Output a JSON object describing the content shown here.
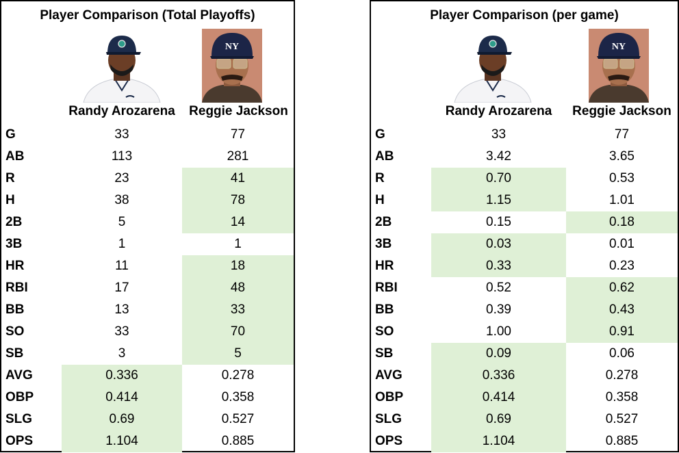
{
  "colors": {
    "highlight": "#dff0d6",
    "border": "#000000",
    "background": "#ffffff"
  },
  "players": [
    "Randy Arozarena",
    "Reggie Jackson"
  ],
  "photos": [
    "Randy Arozarena photo (Mariners cap)",
    "Reggie Jackson photo (Yankees helmet)"
  ],
  "panels": [
    {
      "title": "Player Comparison (Total Playoffs)",
      "rows": [
        {
          "stat": "G",
          "v": [
            "33",
            "77"
          ],
          "hl": [
            false,
            false
          ]
        },
        {
          "stat": "AB",
          "v": [
            "113",
            "281"
          ],
          "hl": [
            false,
            false
          ]
        },
        {
          "stat": "R",
          "v": [
            "23",
            "41"
          ],
          "hl": [
            false,
            true
          ]
        },
        {
          "stat": "H",
          "v": [
            "38",
            "78"
          ],
          "hl": [
            false,
            true
          ]
        },
        {
          "stat": "2B",
          "v": [
            "5",
            "14"
          ],
          "hl": [
            false,
            true
          ]
        },
        {
          "stat": "3B",
          "v": [
            "1",
            "1"
          ],
          "hl": [
            false,
            false
          ]
        },
        {
          "stat": "HR",
          "v": [
            "11",
            "18"
          ],
          "hl": [
            false,
            true
          ]
        },
        {
          "stat": "RBI",
          "v": [
            "17",
            "48"
          ],
          "hl": [
            false,
            true
          ]
        },
        {
          "stat": "BB",
          "v": [
            "13",
            "33"
          ],
          "hl": [
            false,
            true
          ]
        },
        {
          "stat": "SO",
          "v": [
            "33",
            "70"
          ],
          "hl": [
            false,
            true
          ]
        },
        {
          "stat": "SB",
          "v": [
            "3",
            "5"
          ],
          "hl": [
            false,
            true
          ]
        },
        {
          "stat": "AVG",
          "v": [
            "0.336",
            "0.278"
          ],
          "hl": [
            true,
            false
          ]
        },
        {
          "stat": "OBP",
          "v": [
            "0.414",
            "0.358"
          ],
          "hl": [
            true,
            false
          ]
        },
        {
          "stat": "SLG",
          "v": [
            "0.69",
            "0.527"
          ],
          "hl": [
            true,
            false
          ]
        },
        {
          "stat": "OPS",
          "v": [
            "1.104",
            "0.885"
          ],
          "hl": [
            true,
            false
          ]
        }
      ]
    },
    {
      "title": "Player Comparison (per game)",
      "rows": [
        {
          "stat": "G",
          "v": [
            "33",
            "77"
          ],
          "hl": [
            false,
            false
          ]
        },
        {
          "stat": "AB",
          "v": [
            "3.42",
            "3.65"
          ],
          "hl": [
            false,
            false
          ]
        },
        {
          "stat": "R",
          "v": [
            "0.70",
            "0.53"
          ],
          "hl": [
            true,
            false
          ]
        },
        {
          "stat": "H",
          "v": [
            "1.15",
            "1.01"
          ],
          "hl": [
            true,
            false
          ]
        },
        {
          "stat": "2B",
          "v": [
            "0.15",
            "0.18"
          ],
          "hl": [
            false,
            true
          ]
        },
        {
          "stat": "3B",
          "v": [
            "0.03",
            "0.01"
          ],
          "hl": [
            true,
            false
          ]
        },
        {
          "stat": "HR",
          "v": [
            "0.33",
            "0.23"
          ],
          "hl": [
            true,
            false
          ]
        },
        {
          "stat": "RBI",
          "v": [
            "0.52",
            "0.62"
          ],
          "hl": [
            false,
            true
          ]
        },
        {
          "stat": "BB",
          "v": [
            "0.39",
            "0.43"
          ],
          "hl": [
            false,
            true
          ]
        },
        {
          "stat": "SO",
          "v": [
            "1.00",
            "0.91"
          ],
          "hl": [
            false,
            true
          ]
        },
        {
          "stat": "SB",
          "v": [
            "0.09",
            "0.06"
          ],
          "hl": [
            true,
            false
          ]
        },
        {
          "stat": "AVG",
          "v": [
            "0.336",
            "0.278"
          ],
          "hl": [
            true,
            false
          ]
        },
        {
          "stat": "OBP",
          "v": [
            "0.414",
            "0.358"
          ],
          "hl": [
            true,
            false
          ]
        },
        {
          "stat": "SLG",
          "v": [
            "0.69",
            "0.527"
          ],
          "hl": [
            true,
            false
          ]
        },
        {
          "stat": "OPS",
          "v": [
            "1.104",
            "0.885"
          ],
          "hl": [
            true,
            false
          ]
        }
      ]
    }
  ]
}
